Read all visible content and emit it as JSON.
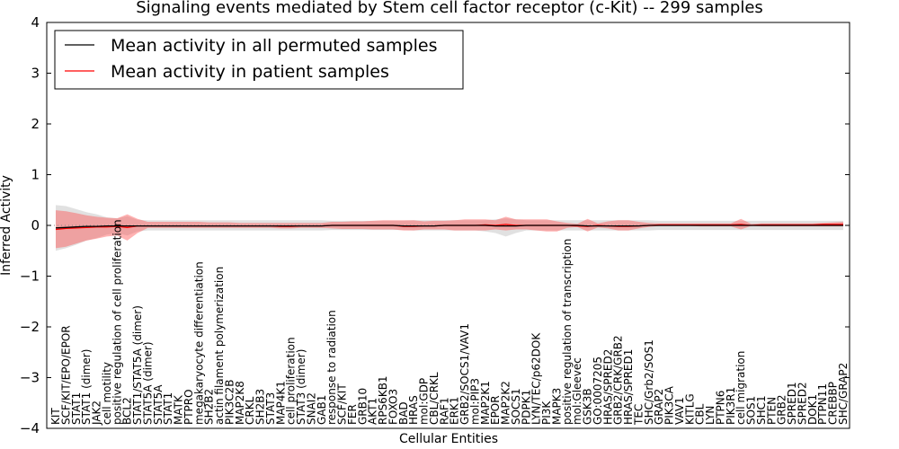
{
  "chart_data": {
    "type": "line",
    "title": "Signaling events mediated by Stem cell factor receptor (c-Kit) -- 299 samples",
    "xlabel": "Cellular Entities",
    "ylabel": "Inferred Activity",
    "ylim": [
      -4,
      4
    ],
    "yticks": [
      "−4",
      "−3",
      "−2",
      "−1",
      "0",
      "1",
      "2",
      "3",
      "4"
    ],
    "legend": {
      "placement": "top-left",
      "entries": [
        {
          "label": "Mean activity in all permuted samples",
          "color": "#000000"
        },
        {
          "label": "Mean activity in patient samples",
          "color": "#ff0000"
        }
      ]
    },
    "categories": [
      "KIT",
      "SCF/KIT/EPO/EPOR",
      "STAT1",
      "STAT1 (dimer)",
      "JAK2",
      "cell motility",
      "positive regulation of cell proliferation",
      "BCL2",
      "STAT1/STAT5A (dimer)",
      "STAT5A (dimer)",
      "STAT5A",
      "STAT1",
      "MATK",
      "PTPRO",
      "megakaryocyte differentiation",
      "SH2B2",
      "actin filament polymerization",
      "PIK3C2B",
      "MAP2K8",
      "CRKL",
      "SH2B3",
      "STAT3",
      "MAP4K1",
      "cell proliferation",
      "STAT3 (dimer)",
      "SNAI2",
      "GAB1",
      "response to radiation",
      "SCF/KIT",
      "FER",
      "GRB10",
      "AKT1",
      "RPS6KB1",
      "FOXO3",
      "BAD",
      "HRAS",
      "mol:GDP",
      "CBL/CRKL",
      "RAF1",
      "ERK1",
      "GRB2/SOCS1/VAV1",
      "mol:PIP3",
      "MAP2K1",
      "EPOR",
      "MAP2K2",
      "SOCS1",
      "PDPK1",
      "LYN/TEC/p62DOK",
      "PI3K",
      "MAPK3",
      "positive regulation of transcription",
      "mol:Gleevec",
      "GSK3B",
      "GO:0007205",
      "HRAS/SPRED2",
      "GRB2/CRK/GRB2",
      "HRAS/SPRED1",
      "TEC",
      "SHC/Grb2/SOS1",
      "GRAP2",
      "PIK3CA",
      "VAV1",
      "KITLG",
      "CBL",
      "LYN",
      "PTPN6",
      "PIK3R1",
      "cell migration",
      "SOS1",
      "SHC1",
      "PTEN",
      "GRB2",
      "SPRED1",
      "SPRED2",
      "DOK1",
      "PTPN11",
      "CREBBP",
      "SHC/GRAP2"
    ],
    "series": [
      {
        "name": "Mean activity in all permuted samples",
        "color": "#000000",
        "values": [
          -0.05,
          -0.04,
          -0.03,
          -0.02,
          -0.02,
          -0.01,
          -0.01,
          -0.01,
          -0.01,
          -0.01,
          -0.01,
          -0.01,
          -0.01,
          -0.01,
          -0.01,
          -0.01,
          -0.01,
          -0.01,
          -0.01,
          -0.01,
          -0.01,
          -0.01,
          -0.01,
          -0.01,
          -0.01,
          -0.01,
          -0.01,
          0,
          0,
          0,
          0,
          0,
          0,
          0,
          -0.01,
          -0.01,
          -0.01,
          -0.01,
          0,
          0,
          0,
          0,
          0,
          -0.01,
          -0.01,
          -0.01,
          0,
          0,
          0,
          0,
          0,
          0,
          -0.01,
          -0.01,
          -0.01,
          -0.01,
          -0.01,
          -0.01,
          0,
          0,
          0,
          0,
          0,
          0,
          0,
          0,
          0,
          0,
          0,
          0,
          0,
          0,
          0,
          0,
          0,
          0,
          0,
          0
        ],
        "band_low": [
          -0.5,
          -0.45,
          -0.38,
          -0.3,
          -0.25,
          -0.18,
          -0.15,
          -0.2,
          -0.12,
          -0.1,
          -0.1,
          -0.1,
          -0.1,
          -0.1,
          -0.1,
          -0.1,
          -0.1,
          -0.1,
          -0.1,
          -0.1,
          -0.1,
          -0.1,
          -0.1,
          -0.1,
          -0.1,
          -0.1,
          -0.1,
          -0.09,
          -0.09,
          -0.09,
          -0.09,
          -0.09,
          -0.09,
          -0.09,
          -0.09,
          -0.1,
          -0.1,
          -0.1,
          -0.1,
          -0.1,
          -0.1,
          -0.1,
          -0.12,
          -0.15,
          -0.22,
          -0.15,
          -0.1,
          -0.1,
          -0.1,
          -0.1,
          -0.1,
          -0.1,
          -0.1,
          -0.1,
          -0.1,
          -0.1,
          -0.1,
          -0.1,
          -0.1,
          -0.09,
          -0.09,
          -0.09,
          -0.09,
          -0.09,
          -0.09,
          -0.09,
          -0.09,
          -0.09,
          -0.09,
          -0.09,
          -0.09,
          -0.09,
          -0.09,
          -0.09,
          -0.09,
          -0.09,
          -0.09,
          -0.09
        ],
        "band_high": [
          0.4,
          0.38,
          0.32,
          0.26,
          0.22,
          0.16,
          0.14,
          0.18,
          0.11,
          0.1,
          0.1,
          0.1,
          0.1,
          0.1,
          0.1,
          0.1,
          0.1,
          0.1,
          0.1,
          0.1,
          0.1,
          0.1,
          0.1,
          0.1,
          0.1,
          0.1,
          0.1,
          0.09,
          0.09,
          0.09,
          0.09,
          0.09,
          0.09,
          0.09,
          0.09,
          0.1,
          0.1,
          0.1,
          0.1,
          0.1,
          0.1,
          0.1,
          0.1,
          0.12,
          0.14,
          0.12,
          0.1,
          0.1,
          0.1,
          0.1,
          0.1,
          0.1,
          0.1,
          0.1,
          0.1,
          0.1,
          0.1,
          0.1,
          0.1,
          0.09,
          0.09,
          0.09,
          0.09,
          0.09,
          0.09,
          0.09,
          0.09,
          0.09,
          0.09,
          0.09,
          0.09,
          0.09,
          0.09,
          0.09,
          0.09,
          0.09,
          0.09,
          0.09
        ]
      },
      {
        "name": "Mean activity in patient samples",
        "color": "#ff0000",
        "values": [
          -0.08,
          -0.06,
          -0.05,
          -0.04,
          -0.03,
          -0.03,
          -0.02,
          -0.04,
          -0.01,
          -0.01,
          -0.01,
          -0.01,
          -0.01,
          -0.01,
          -0.01,
          -0.01,
          -0.01,
          -0.01,
          -0.01,
          -0.01,
          -0.01,
          -0.01,
          -0.02,
          -0.02,
          -0.01,
          -0.01,
          -0.01,
          0,
          0,
          0,
          0,
          0,
          0,
          0,
          -0.02,
          -0.02,
          -0.01,
          -0.01,
          0,
          0,
          0,
          0,
          0.01,
          0,
          0.02,
          0,
          0,
          0,
          0,
          0,
          0,
          -0.01,
          -0.02,
          0,
          -0.01,
          -0.02,
          -0.02,
          -0.01,
          0,
          0.01,
          0.01,
          0.01,
          0.01,
          0.01,
          0.01,
          0.01,
          0.01,
          0.02,
          0,
          0.01,
          0.01,
          0.01,
          0.01,
          0.01,
          0.01,
          0.02,
          0.02,
          0.02
        ],
        "band_low": [
          -0.45,
          -0.42,
          -0.36,
          -0.3,
          -0.26,
          -0.22,
          -0.2,
          -0.3,
          -0.15,
          -0.05,
          -0.05,
          -0.05,
          -0.05,
          -0.05,
          -0.05,
          -0.05,
          -0.05,
          -0.05,
          -0.05,
          -0.05,
          -0.05,
          -0.05,
          -0.06,
          -0.06,
          -0.05,
          -0.05,
          -0.05,
          -0.06,
          -0.07,
          -0.07,
          -0.07,
          -0.08,
          -0.08,
          -0.08,
          -0.1,
          -0.1,
          -0.08,
          -0.08,
          -0.08,
          -0.1,
          -0.1,
          -0.1,
          -0.1,
          -0.08,
          -0.1,
          -0.08,
          -0.08,
          -0.1,
          -0.12,
          -0.12,
          -0.05,
          -0.03,
          -0.12,
          -0.04,
          -0.06,
          -0.1,
          -0.1,
          -0.06,
          -0.03,
          -0.01,
          -0.01,
          -0.01,
          -0.01,
          -0.02,
          -0.02,
          -0.02,
          -0.02,
          -0.08,
          -0.01,
          -0.02,
          -0.02,
          -0.02,
          -0.02,
          -0.02,
          -0.02,
          -0.02,
          -0.02,
          -0.02
        ],
        "band_high": [
          0.3,
          0.28,
          0.24,
          0.2,
          0.17,
          0.15,
          0.14,
          0.22,
          0.13,
          0.07,
          0.07,
          0.07,
          0.07,
          0.07,
          0.07,
          0.06,
          0.06,
          0.06,
          0.05,
          0.05,
          0.05,
          0.05,
          0.05,
          0.05,
          0.05,
          0.05,
          0.05,
          0.07,
          0.07,
          0.08,
          0.08,
          0.09,
          0.1,
          0.1,
          0.1,
          0.1,
          0.08,
          0.09,
          0.09,
          0.1,
          0.12,
          0.12,
          0.12,
          0.1,
          0.17,
          0.12,
          0.12,
          0.12,
          0.12,
          0.08,
          0.05,
          0.03,
          0.13,
          0.04,
          0.08,
          0.1,
          0.1,
          0.07,
          0.05,
          0.04,
          0.04,
          0.04,
          0.04,
          0.04,
          0.04,
          0.04,
          0.04,
          0.13,
          0.03,
          0.04,
          0.04,
          0.04,
          0.04,
          0.04,
          0.04,
          0.05,
          0.06,
          0.07
        ]
      }
    ]
  }
}
